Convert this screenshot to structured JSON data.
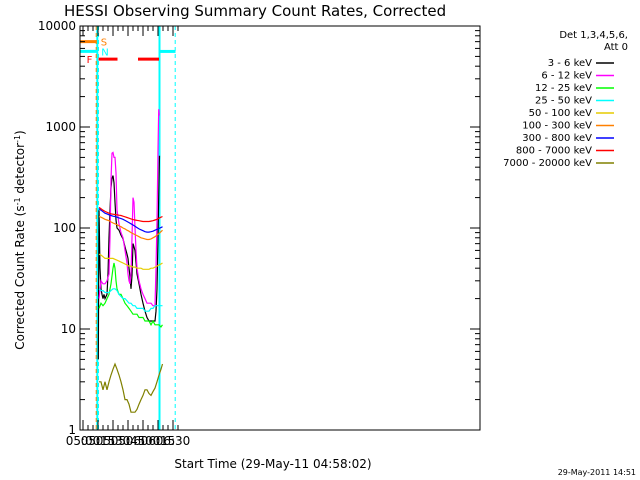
{
  "chart_data": {
    "type": "line",
    "title": "HESSI Observing Summary Count Rates, Corrected",
    "xlabel": "Start Time (29-May-11 04:58:02)",
    "ylabel_main": "Corrected Count Rate (s",
    "ylabel_sup1": "-1",
    "ylabel_mid": " detector",
    "ylabel_sup2": "-1",
    "ylabel_end": ")",
    "yscale": "log",
    "ylim": [
      1,
      10000
    ],
    "xlim": [
      297,
      697
    ],
    "x_unit": "minutes after 00:00 UT",
    "x_ticks": [
      {
        "v": 300,
        "label": "05:00"
      },
      {
        "v": 315,
        "label": "05:15"
      },
      {
        "v": 330,
        "label": "05:30"
      },
      {
        "v": 345,
        "label": "05:45"
      },
      {
        "v": 360,
        "label": "06:00"
      },
      {
        "v": 375,
        "label": "06:15"
      },
      {
        "v": 390,
        "label": "06:30"
      }
    ],
    "y_ticks": [
      {
        "v": 1,
        "label": "1"
      },
      {
        "v": 10,
        "label": "10"
      },
      {
        "v": 100,
        "label": "100"
      },
      {
        "v": 1000,
        "label": "1000"
      },
      {
        "v": 10000,
        "label": "10000"
      }
    ],
    "legend_header": [
      "Det 1,3,4,5,6,",
      "Att 0"
    ],
    "series": [
      {
        "name": "3 - 6 keV",
        "color": "#000000",
        "x": [
          315.3,
          316,
          317,
          318,
          319,
          320,
          321,
          322,
          323,
          324,
          325,
          326,
          327,
          328,
          329,
          330,
          331,
          332,
          333,
          334,
          336,
          338,
          340,
          342,
          344,
          345,
          346,
          347,
          348,
          349,
          350,
          352,
          354,
          356,
          358,
          360,
          362,
          364,
          366,
          368,
          370,
          372,
          373,
          374,
          375,
          376,
          376.5
        ],
        "y": [
          5,
          150,
          40,
          25,
          22,
          20,
          22,
          20,
          21,
          22,
          35,
          80,
          150,
          250,
          310,
          330,
          280,
          180,
          120,
          100,
          95,
          85,
          78,
          65,
          55,
          50,
          40,
          33,
          25,
          34,
          70,
          60,
          35,
          28,
          22,
          18,
          15,
          13,
          12,
          12,
          12,
          12,
          15,
          25,
          80,
          300,
          520
        ]
      },
      {
        "name": "6 - 12 keV",
        "color": "#ff00ff",
        "x": [
          316,
          318,
          320,
          322,
          324,
          326,
          327,
          328,
          329,
          330,
          331,
          332,
          333,
          334,
          336,
          338,
          340,
          342,
          344,
          345,
          346,
          347,
          348,
          349,
          350,
          351,
          352,
          353,
          354,
          356,
          358,
          360,
          362,
          364,
          366,
          368,
          370,
          372,
          373,
          374,
          375,
          375.7,
          376.3
        ],
        "y": [
          20,
          30,
          28,
          28,
          30,
          35,
          80,
          300,
          550,
          560,
          500,
          500,
          350,
          150,
          110,
          90,
          80,
          60,
          45,
          35,
          30,
          28,
          35,
          80,
          200,
          180,
          100,
          60,
          40,
          30,
          25,
          22,
          20,
          18,
          18,
          18,
          17,
          17,
          40,
          120,
          600,
          1500,
          1300
        ]
      },
      {
        "name": "12 - 25 keV",
        "color": "#00ff00",
        "x": [
          316,
          318,
          320,
          322,
          324,
          326,
          328,
          330,
          331,
          332,
          333,
          334,
          336,
          338,
          340,
          342,
          344,
          346,
          348,
          350,
          352,
          354,
          356,
          358,
          360,
          362,
          364,
          366,
          368,
          370,
          372,
          374,
          376,
          378,
          379.5
        ],
        "y": [
          16,
          18,
          17,
          18,
          20,
          22,
          28,
          40,
          45,
          40,
          30,
          25,
          22,
          22,
          20,
          18,
          17,
          16,
          15,
          14,
          14,
          14,
          13,
          13,
          13,
          12,
          12,
          12,
          11,
          12,
          11,
          11,
          11,
          10.5,
          11
        ]
      },
      {
        "name": "25 - 50 keV",
        "color": "#00ffff",
        "x": [
          316,
          318,
          320,
          322,
          324,
          326,
          328,
          330,
          332,
          334,
          336,
          338,
          340,
          342,
          344,
          346,
          348,
          350,
          352,
          354,
          356,
          358,
          360,
          362,
          364,
          366,
          368,
          370,
          372,
          374,
          376,
          378,
          379.5
        ],
        "y": [
          25,
          24,
          24,
          23,
          23,
          23,
          24,
          25,
          25,
          24,
          22,
          21,
          20,
          20,
          19,
          18,
          18,
          17,
          17,
          16,
          16,
          16,
          16,
          15,
          15,
          15,
          16,
          16,
          17,
          17,
          17,
          17,
          17
        ]
      },
      {
        "name": "50 - 100 keV",
        "color": "#e6cc00",
        "x": [
          316,
          318,
          320,
          322,
          324,
          326,
          328,
          330,
          332,
          334,
          336,
          338,
          340,
          342,
          344,
          346,
          348,
          350,
          352,
          354,
          356,
          358,
          360,
          362,
          364,
          366,
          368,
          370,
          372,
          374,
          376,
          378,
          379.5
        ],
        "y": [
          55,
          54,
          52,
          50,
          50,
          50,
          50,
          50,
          49,
          48,
          47,
          46,
          45,
          44,
          43,
          42,
          42,
          41,
          41,
          40,
          40,
          40,
          39,
          39,
          39,
          39,
          40,
          40,
          41,
          42,
          43,
          44,
          45
        ]
      },
      {
        "name": "100 - 300 keV",
        "color": "#ff8000",
        "x": [
          316,
          318,
          320,
          322,
          324,
          326,
          328,
          330,
          332,
          334,
          336,
          338,
          340,
          342,
          344,
          346,
          348,
          350,
          352,
          354,
          356,
          358,
          360,
          362,
          364,
          366,
          368,
          370,
          372,
          374,
          376,
          378,
          379.5
        ],
        "y": [
          130,
          128,
          125,
          122,
          120,
          118,
          115,
          112,
          110,
          108,
          105,
          103,
          100,
          98,
          95,
          93,
          90,
          88,
          86,
          84,
          82,
          80,
          79,
          78,
          77,
          77,
          78,
          80,
          82,
          85,
          88,
          92,
          95
        ]
      },
      {
        "name": "300 - 800 keV",
        "color": "#0000ff",
        "x": [
          316,
          318,
          320,
          322,
          324,
          326,
          328,
          330,
          332,
          334,
          336,
          338,
          340,
          342,
          344,
          346,
          348,
          350,
          352,
          354,
          356,
          358,
          360,
          362,
          364,
          366,
          368,
          370,
          372,
          374,
          376,
          378,
          379.5
        ],
        "y": [
          155,
          150,
          145,
          140,
          138,
          135,
          133,
          131,
          130,
          128,
          126,
          124,
          122,
          119,
          116,
          113,
          110,
          107,
          104,
          101,
          98,
          96,
          94,
          92,
          91,
          91,
          92,
          93,
          95,
          97,
          99,
          101,
          103
        ]
      },
      {
        "name": "800 - 7000 keV",
        "color": "#ff0000",
        "x": [
          316,
          318,
          320,
          322,
          324,
          326,
          328,
          330,
          332,
          334,
          336,
          338,
          340,
          342,
          344,
          346,
          348,
          350,
          352,
          354,
          356,
          358,
          360,
          362,
          364,
          366,
          368,
          370,
          372,
          374,
          376,
          378,
          379.5
        ],
        "y": [
          160,
          155,
          150,
          146,
          143,
          140,
          138,
          137,
          136,
          135,
          134,
          133,
          131,
          129,
          127,
          125,
          123,
          121,
          120,
          119,
          118,
          117,
          116,
          116,
          116,
          116,
          117,
          118,
          120,
          122,
          125,
          128,
          130
        ]
      },
      {
        "name": "7000 - 20000 keV",
        "color": "#808000",
        "x": [
          316,
          318,
          320,
          322,
          324,
          326,
          328,
          330,
          332,
          334,
          336,
          338,
          340,
          342,
          344,
          346,
          348,
          350,
          352,
          354,
          356,
          358,
          360,
          362,
          364,
          366,
          368,
          370,
          372,
          374,
          376,
          378,
          379.5
        ],
        "y": [
          3,
          3,
          2.5,
          3,
          2.5,
          3,
          3.5,
          4,
          4.5,
          4,
          3.5,
          3,
          2.5,
          2,
          2,
          1.8,
          1.5,
          1.5,
          1.5,
          1.6,
          1.8,
          2,
          2.2,
          2.5,
          2.5,
          2.3,
          2.2,
          2.4,
          2.6,
          3,
          3.5,
          4,
          4.5
        ]
      }
    ],
    "segments": [
      {
        "label": "S",
        "color": "#ff8000",
        "y": 7000,
        "ranges": [
          [
            297,
            313.7
          ]
        ]
      },
      {
        "label": "N",
        "color": "#00ffff",
        "y": 5600,
        "ranges": [
          [
            297,
            314.3
          ],
          [
            376.5,
            392.5
          ]
        ]
      },
      {
        "label": "F",
        "color": "#ff0000",
        "y": 4700,
        "ranges": [
          [
            315.6,
            334.5
          ],
          [
            355,
            376
          ]
        ]
      }
    ],
    "vlines": [
      {
        "x": 314.3,
        "color": "#00ffff",
        "style": "solid"
      },
      {
        "x": 376.5,
        "color": "#00ffff",
        "style": "solid"
      },
      {
        "x": 313.2,
        "color": "#ff8000",
        "style": "dashed"
      },
      {
        "x": 315.5,
        "color": "#00ffff",
        "style": "dashed"
      },
      {
        "x": 392.2,
        "color": "#00ffff",
        "style": "dashed"
      }
    ],
    "footer_date": "29-May-2011 14:51",
    "grid": false,
    "legend_position": "right"
  }
}
